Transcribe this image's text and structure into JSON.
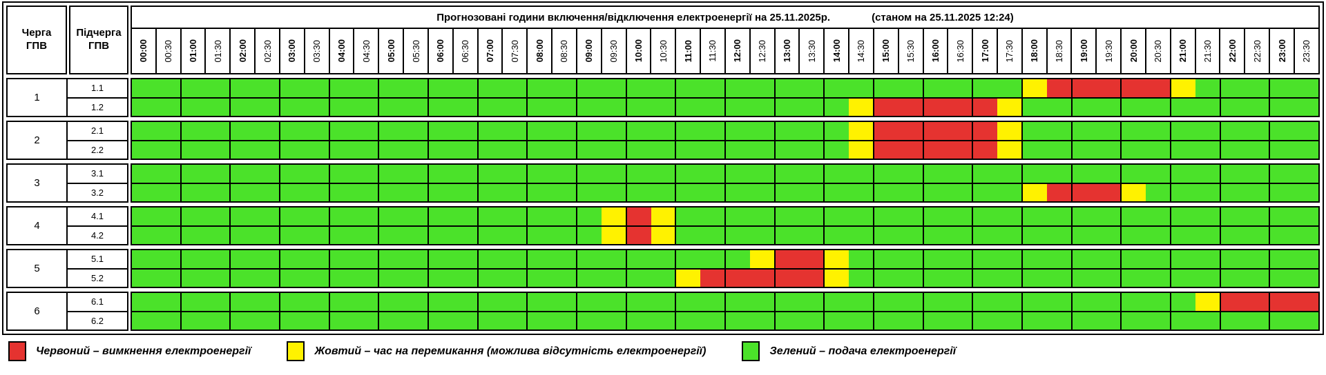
{
  "title": {
    "main": "Прогнозовані години включення/відключення електроенергії на 25.11.2025р.",
    "as_of": "(станом на 25.11.2025 12:24)"
  },
  "corner": {
    "queue_header": "Черга\nГПВ",
    "subqueue_header": "Підчерга\nГПВ"
  },
  "chart_data": {
    "type": "heatmap",
    "title": "Прогнозовані години включення/відключення електроенергії на 25.11.2025р.",
    "as_of": "(станом на 25.11.2025 12:24)",
    "x_labels": [
      "00:00",
      "00:30",
      "01:00",
      "01:30",
      "02:00",
      "02:30",
      "03:00",
      "03:30",
      "04:00",
      "04:30",
      "05:00",
      "05:30",
      "06:00",
      "06:30",
      "07:00",
      "07:30",
      "08:00",
      "08:30",
      "09:00",
      "09:30",
      "10:00",
      "10:30",
      "11:00",
      "11:30",
      "12:00",
      "12:30",
      "13:00",
      "13:30",
      "14:00",
      "14:30",
      "15:00",
      "15:30",
      "16:00",
      "16:30",
      "17:00",
      "17:30",
      "18:00",
      "18:30",
      "19:00",
      "19:30",
      "20:00",
      "20:30",
      "21:00",
      "21:30",
      "22:00",
      "22:30",
      "23:00",
      "23:30"
    ],
    "slot_encoding": "48 half-hour slots per row; G = green (power on), Y = yellow (switching), R = red (outage)",
    "value_colors": {
      "G": "#4BE22A",
      "Y": "#FFF200",
      "R": "#E53330"
    },
    "value_meaning": {
      "G": "подача електроенергії",
      "Y": "час на перемикання (можлива відсутність електроенергії)",
      "R": "вимкнення електроенергії"
    },
    "groups": [
      {
        "queue": "1",
        "rows": [
          {
            "label": "1.1",
            "slots": "GGGGGGGGGGGGGGGGGGGGGGGGGGGGGGGGGGGGYRRRRRYGGGGG"
          },
          {
            "label": "1.2",
            "slots": "GGGGGGGGGGGGGGGGGGGGGGGGGGGGGYRRRRRYGGGGGGGGGGGG"
          }
        ]
      },
      {
        "queue": "2",
        "rows": [
          {
            "label": "2.1",
            "slots": "GGGGGGGGGGGGGGGGGGGGGGGGGGGGGYRRRRRYGGGGGGGGGGGG"
          },
          {
            "label": "2.2",
            "slots": "GGGGGGGGGGGGGGGGGGGGGGGGGGGGGYRRRRRYGGGGGGGGGGGG"
          }
        ]
      },
      {
        "queue": "3",
        "rows": [
          {
            "label": "3.1",
            "slots": "GGGGGGGGGGGGGGGGGGGGGGGGGGGGGGGGGGGGGGGGGGGGGGGG"
          },
          {
            "label": "3.2",
            "slots": "GGGGGGGGGGGGGGGGGGGGGGGGGGGGGGGGGGGGYRRRYGGGGGGG"
          }
        ]
      },
      {
        "queue": "4",
        "rows": [
          {
            "label": "4.1",
            "slots": "GGGGGGGGGGGGGGGGGGGYRYGGGGGGGGGGGGGGGGGGGGGGGGGG"
          },
          {
            "label": "4.2",
            "slots": "GGGGGGGGGGGGGGGGGGGYRYGGGGGGGGGGGGGGGGGGGGGGGGGG"
          }
        ]
      },
      {
        "queue": "5",
        "rows": [
          {
            "label": "5.1",
            "slots": "GGGGGGGGGGGGGGGGGGGGGGGGGYRRYGGGGGGGGGGGGGGGGGGG"
          },
          {
            "label": "5.2",
            "slots": "GGGGGGGGGGGGGGGGGGGGGGYRRRRRYGGGGGGGGGGGGGGGGGGG"
          }
        ]
      },
      {
        "queue": "6",
        "rows": [
          {
            "label": "6.1",
            "slots": "GGGGGGGGGGGGGGGGGGGGGGGGGGGGGGGGGGGGGGGGGGGYRRRR"
          },
          {
            "label": "6.2",
            "slots": "GGGGGGGGGGGGGGGGGGGGGGGGGGGGGGGGGGGGGGGGGGGGGGGG"
          }
        ]
      }
    ]
  },
  "legend": {
    "items": [
      {
        "key": "R",
        "color": "#E53330",
        "label": "Червоний – вимкнення електроенергії"
      },
      {
        "key": "Y",
        "color": "#FFF200",
        "label": "Жовтий – час на перемикання (можлива відсутність електроенергії)"
      },
      {
        "key": "G",
        "color": "#4BE22A",
        "label": "Зелений – подача електроенергії"
      }
    ]
  }
}
